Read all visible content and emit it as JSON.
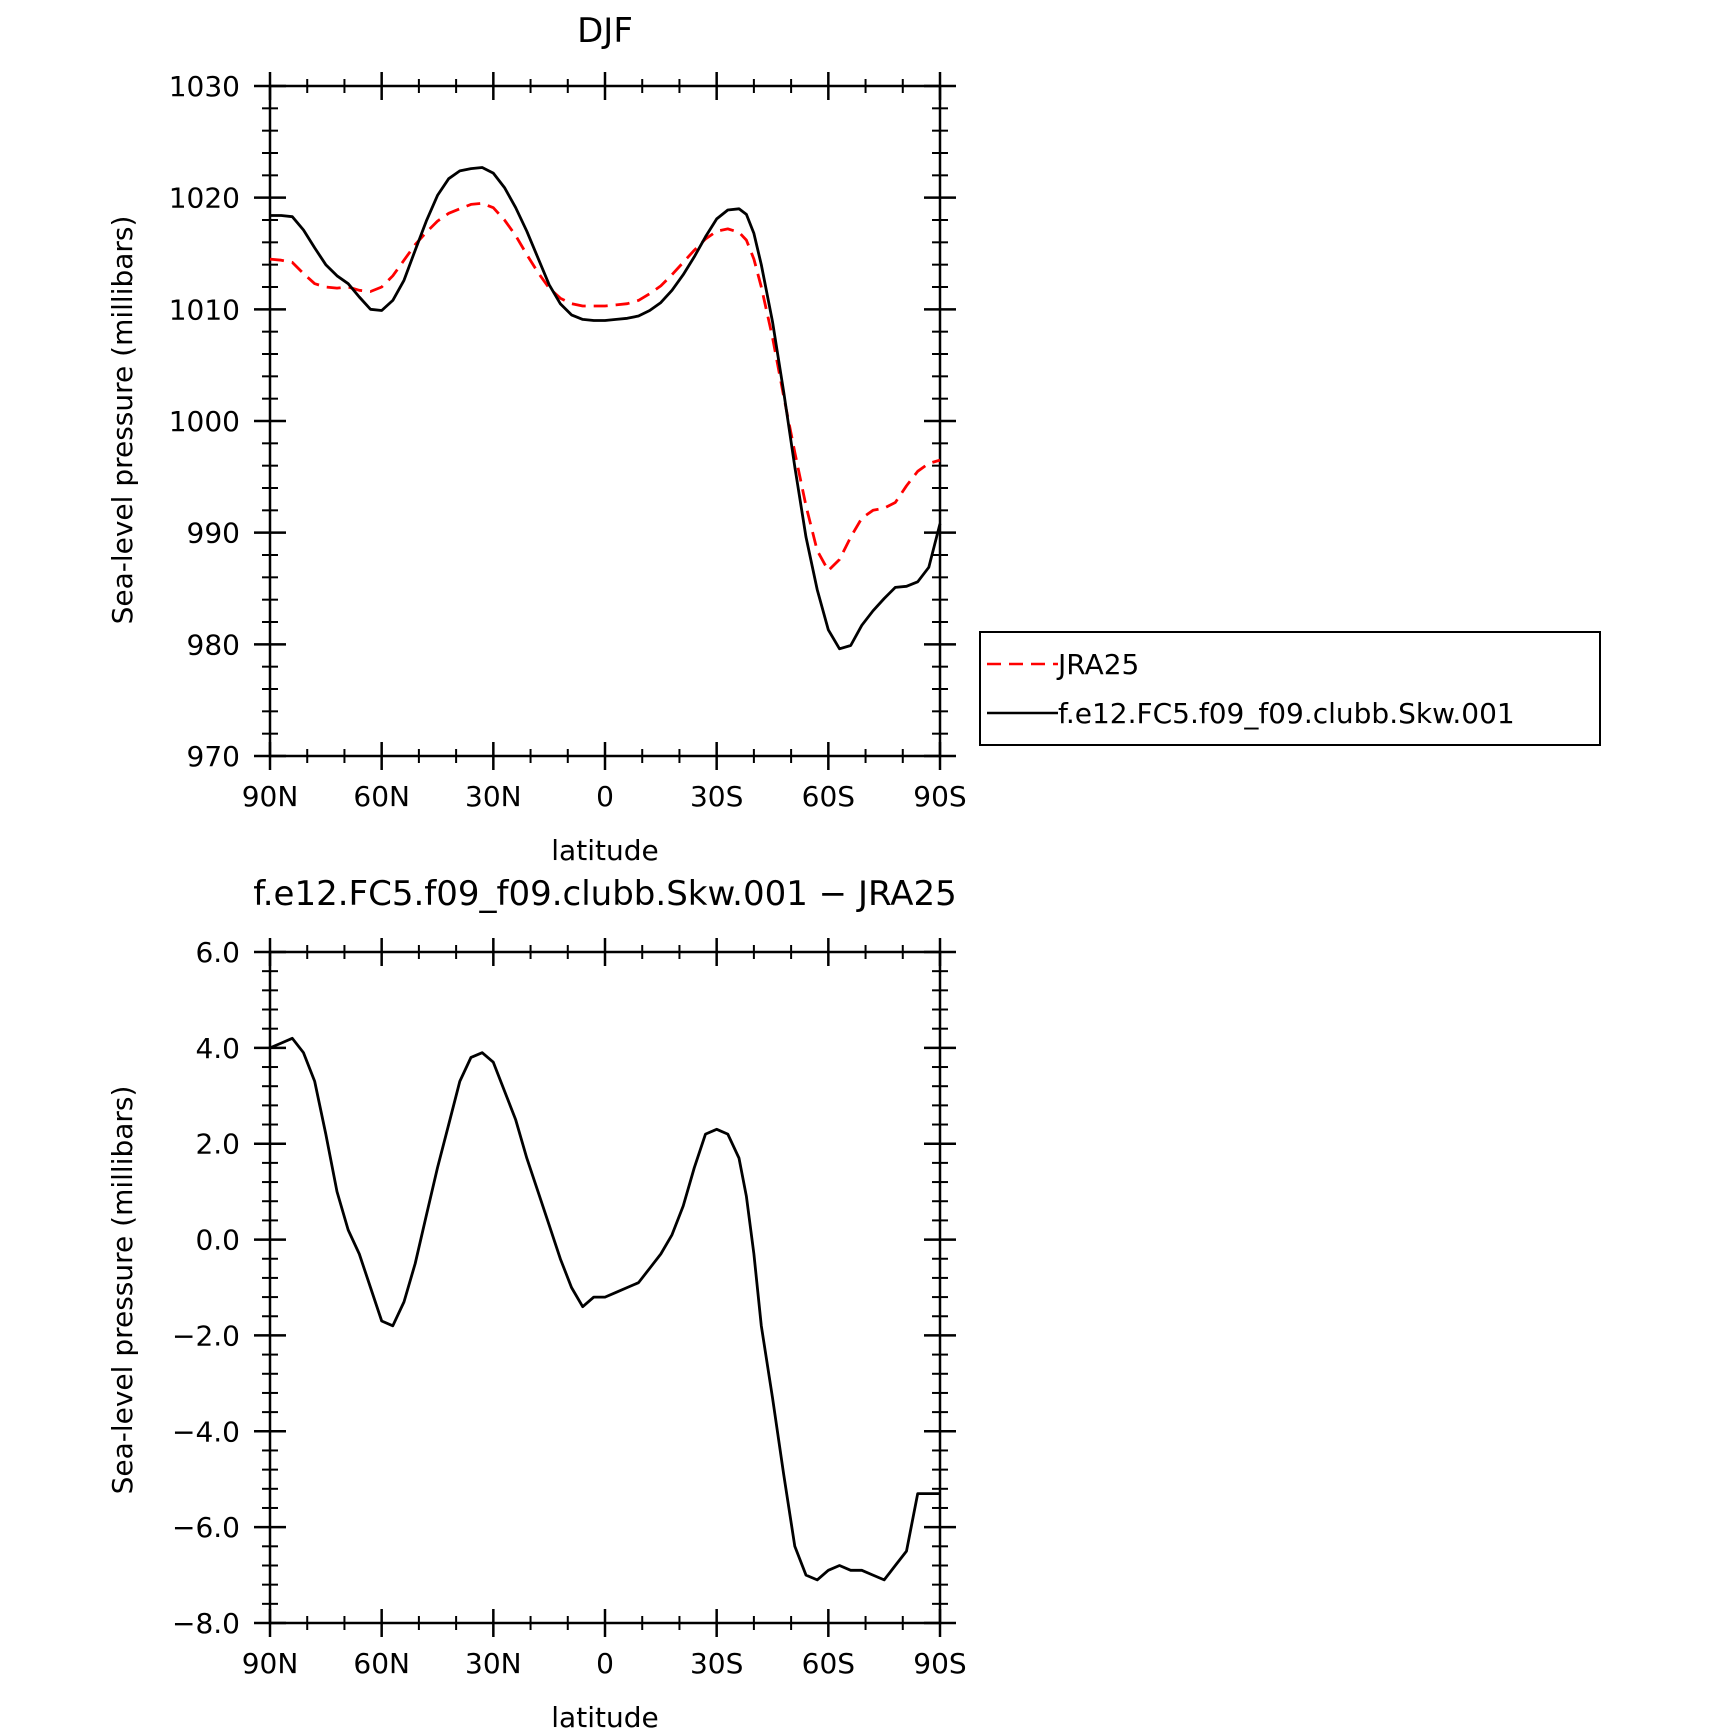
{
  "chart_data": [
    {
      "type": "line",
      "title": "DJF",
      "xlabel": "latitude",
      "ylabel": "Sea-level pressure (millibars)",
      "xlim": [
        90,
        -90
      ],
      "ylim": [
        970,
        1030
      ],
      "xticks": [
        90,
        60,
        30,
        0,
        -30,
        -60,
        -90
      ],
      "xtick_labels": [
        "90N",
        "60N",
        "30N",
        "0",
        "30S",
        "60S",
        "90S"
      ],
      "yticks": [
        970,
        980,
        990,
        1000,
        1010,
        1020,
        1030
      ],
      "ytick_labels": [
        "970",
        "980",
        "990",
        "1000",
        "1010",
        "1020",
        "1030"
      ],
      "legend": "right",
      "series": [
        {
          "name": "JRA25",
          "color": "#ff0000",
          "dash": "dashed",
          "x": [
            90,
            87,
            84,
            81,
            78,
            75,
            72,
            69,
            66,
            63,
            60,
            57,
            54,
            51,
            48,
            45,
            42,
            39,
            36,
            33,
            30,
            27,
            24,
            21,
            18,
            15,
            12,
            9,
            6,
            3,
            0,
            -3,
            -6,
            -9,
            -12,
            -15,
            -18,
            -21,
            -24,
            -27,
            -30,
            -33,
            -36,
            -38,
            -40,
            -42,
            -45,
            -48,
            -51,
            -54,
            -57,
            -60,
            -63,
            -66,
            -69,
            -72,
            -75,
            -78,
            -81,
            -84,
            -87,
            -90
          ],
          "values": [
            1014.5,
            1014.4,
            1014.2,
            1013.2,
            1012.3,
            1012.0,
            1011.9,
            1012.0,
            1011.7,
            1011.6,
            1012.0,
            1013.0,
            1014.4,
            1015.8,
            1016.9,
            1017.9,
            1018.6,
            1019.0,
            1019.4,
            1019.5,
            1019.1,
            1018.0,
            1016.6,
            1014.9,
            1013.3,
            1011.9,
            1011.0,
            1010.5,
            1010.3,
            1010.3,
            1010.3,
            1010.4,
            1010.5,
            1010.8,
            1011.4,
            1012.1,
            1013.1,
            1014.2,
            1015.3,
            1016.3,
            1017.0,
            1017.2,
            1016.9,
            1016.2,
            1014.5,
            1012.0,
            1007.5,
            1002.2,
            997.2,
            992.4,
            988.4,
            986.6,
            987.6,
            989.6,
            991.3,
            992.0,
            992.2,
            992.7,
            994.2,
            995.5,
            996.2,
            996.5
          ]
        },
        {
          "name": "f.e12.FC5.f09_f09.clubb.Skw.001",
          "color": "#000000",
          "dash": "solid",
          "x": [
            90,
            87,
            84,
            81,
            78,
            75,
            72,
            69,
            66,
            63,
            60,
            57,
            54,
            51,
            48,
            45,
            42,
            39,
            36,
            33,
            30,
            27,
            24,
            21,
            18,
            15,
            12,
            9,
            6,
            3,
            0,
            -3,
            -6,
            -9,
            -12,
            -15,
            -18,
            -21,
            -24,
            -27,
            -30,
            -33,
            -36,
            -38,
            -40,
            -42,
            -45,
            -48,
            -51,
            -54,
            -57,
            -60,
            -63,
            -66,
            -69,
            -72,
            -75,
            -78,
            -81,
            -84,
            -87,
            -90
          ],
          "values": [
            1018.4,
            1018.4,
            1018.3,
            1017.1,
            1015.5,
            1014.0,
            1013.0,
            1012.3,
            1011.1,
            1010.0,
            1009.9,
            1010.8,
            1012.6,
            1015.3,
            1017.9,
            1020.2,
            1021.7,
            1022.4,
            1022.6,
            1022.7,
            1022.2,
            1020.9,
            1019.1,
            1017.0,
            1014.6,
            1012.2,
            1010.5,
            1009.5,
            1009.1,
            1009.0,
            1009.0,
            1009.1,
            1009.2,
            1009.4,
            1009.9,
            1010.6,
            1011.7,
            1013.1,
            1014.7,
            1016.5,
            1018.1,
            1018.9,
            1019.0,
            1018.5,
            1016.8,
            1014.0,
            1008.9,
            1002.6,
            995.9,
            989.6,
            984.9,
            981.3,
            979.6,
            979.9,
            981.7,
            983.0,
            984.1,
            985.1,
            985.2,
            985.6,
            986.9,
            990.8
          ]
        }
      ]
    },
    {
      "type": "line",
      "title": "f.e12.FC5.f09_f09.clubb.Skw.001 − JRA25",
      "xlabel": "latitude",
      "ylabel": "Sea-level pressure (millibars)",
      "xlim": [
        90,
        -90
      ],
      "ylim": [
        -8.0,
        6.0
      ],
      "xticks": [
        90,
        60,
        30,
        0,
        -30,
        -60,
        -90
      ],
      "xtick_labels": [
        "90N",
        "60N",
        "30N",
        "0",
        "30S",
        "60S",
        "90S"
      ],
      "yticks": [
        -8,
        -6,
        -4,
        -2,
        0,
        2,
        4,
        6
      ],
      "ytick_labels": [
        "−8.0",
        "−6.0",
        "−4.0",
        "−2.0",
        "0.0",
        "2.0",
        "4.0",
        "6.0"
      ],
      "series": [
        {
          "color": "#000000",
          "dash": "solid",
          "x": [
            90,
            87,
            84,
            81,
            78,
            75,
            72,
            69,
            66,
            63,
            60,
            57,
            54,
            51,
            48,
            45,
            42,
            39,
            36,
            33,
            30,
            27,
            24,
            21,
            18,
            15,
            12,
            9,
            6,
            3,
            0,
            -3,
            -6,
            -9,
            -12,
            -15,
            -18,
            -21,
            -24,
            -27,
            -30,
            -33,
            -36,
            -38,
            -40,
            -42,
            -45,
            -48,
            -51,
            -54,
            -57,
            -60,
            -63,
            -66,
            -69,
            -72,
            -75,
            -78,
            -81,
            -84,
            -87,
            -90
          ],
          "values": [
            4.0,
            4.1,
            4.2,
            3.9,
            3.3,
            2.2,
            1.0,
            0.2,
            -0.3,
            -1.0,
            -1.7,
            -1.8,
            -1.3,
            -0.5,
            0.5,
            1.5,
            2.4,
            3.3,
            3.8,
            3.9,
            3.7,
            3.1,
            2.5,
            1.7,
            1.0,
            0.3,
            -0.4,
            -1.0,
            -1.4,
            -1.2,
            -1.2,
            -1.1,
            -1.0,
            -0.9,
            -0.6,
            -0.3,
            0.1,
            0.7,
            1.5,
            2.2,
            2.3,
            2.2,
            1.7,
            0.9,
            -0.3,
            -1.8,
            -3.3,
            -4.9,
            -6.4,
            -7.0,
            -7.1,
            -6.9,
            -6.8,
            -6.9,
            -6.9,
            -7.0,
            -7.1,
            -6.8,
            -6.5,
            -5.3,
            -5.3,
            -5.3
          ]
        }
      ]
    }
  ]
}
